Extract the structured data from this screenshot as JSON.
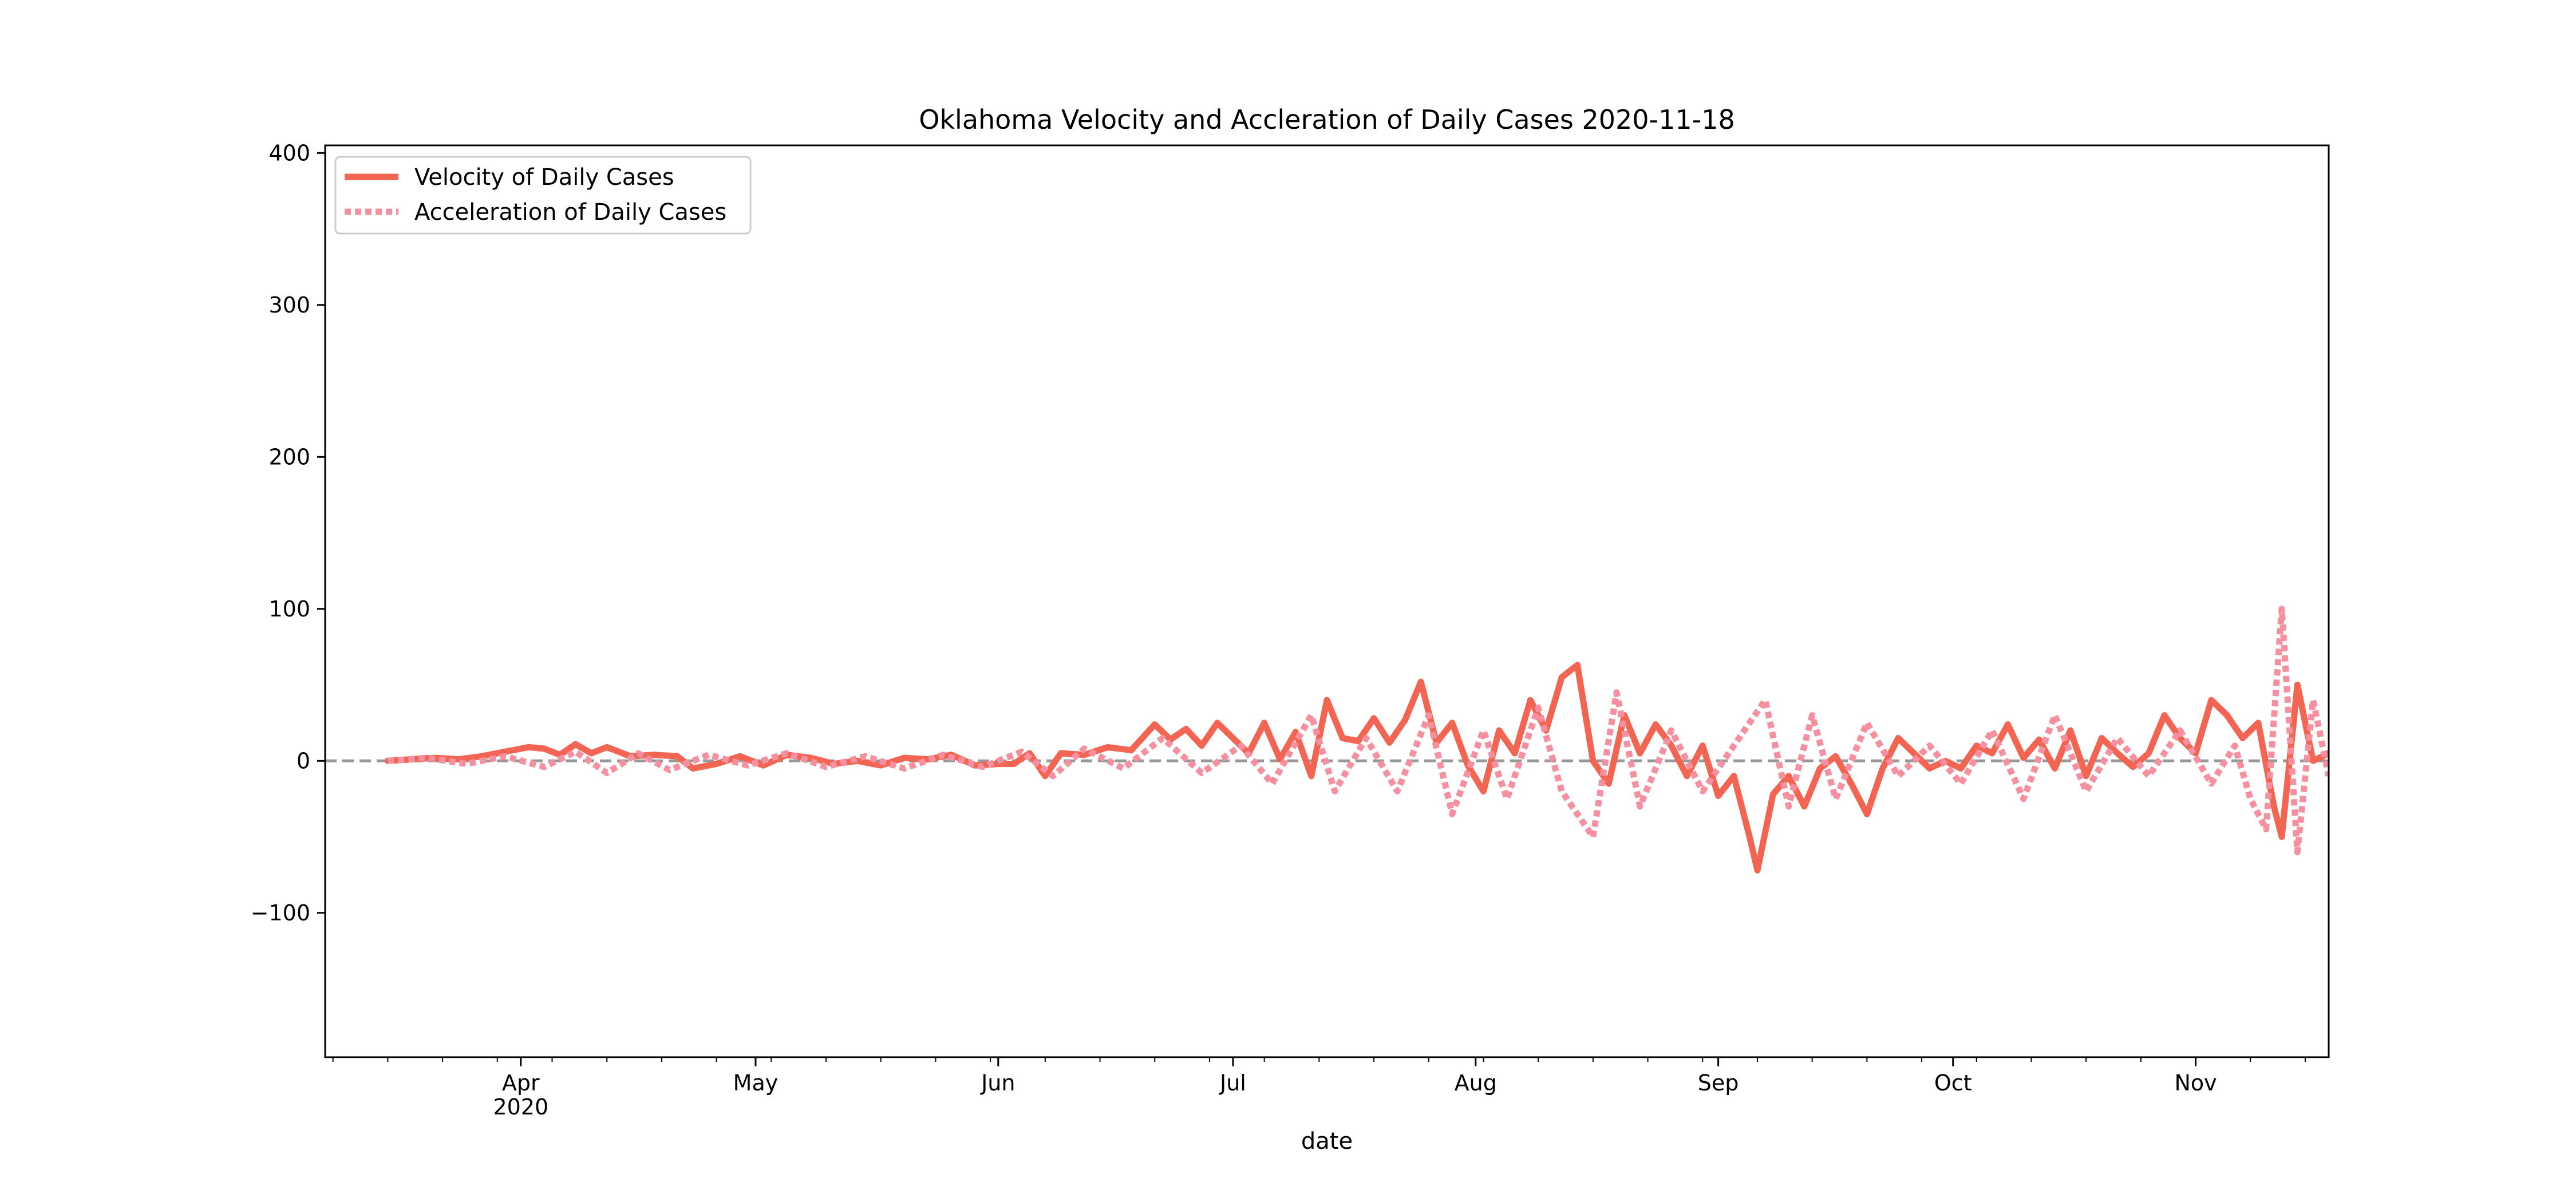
{
  "chart_data": {
    "type": "line",
    "title": "Oklahoma Velocity and Accleration of Daily Cases 2020-11-18",
    "xlabel": "date",
    "ylabel": "",
    "xlim": [
      "2020-03-07",
      "2020-11-18"
    ],
    "ylim": [
      -195,
      405
    ],
    "grid": false,
    "legend": "upper left",
    "yticks": [
      -100,
      0,
      100,
      200,
      300,
      400
    ],
    "yticklabels": [
      "−100",
      "0",
      "100",
      "200",
      "300",
      "400"
    ],
    "xticks": [
      {
        "date": "2020-04-01",
        "label": "Apr",
        "sublabel": "2020"
      },
      {
        "date": "2020-05-01",
        "label": "May",
        "sublabel": ""
      },
      {
        "date": "2020-06-01",
        "label": "Jun",
        "sublabel": ""
      },
      {
        "date": "2020-07-01",
        "label": "Jul",
        "sublabel": ""
      },
      {
        "date": "2020-08-01",
        "label": "Aug",
        "sublabel": ""
      },
      {
        "date": "2020-09-01",
        "label": "Sep",
        "sublabel": ""
      },
      {
        "date": "2020-10-01",
        "label": "Oct",
        "sublabel": ""
      },
      {
        "date": "2020-11-01",
        "label": "Nov",
        "sublabel": ""
      }
    ],
    "reference_line": {
      "y": 0,
      "color": "#999999",
      "style": "dashed"
    },
    "series": [
      {
        "name": "Velocity of Daily Cases",
        "color": "#f26552",
        "style": "solid",
        "points": [
          [
            "2020-03-15",
            0
          ],
          [
            "2020-03-18",
            1
          ],
          [
            "2020-03-21",
            2
          ],
          [
            "2020-03-24",
            1
          ],
          [
            "2020-03-27",
            3
          ],
          [
            "2020-03-30",
            6
          ],
          [
            "2020-04-02",
            9
          ],
          [
            "2020-04-04",
            8
          ],
          [
            "2020-04-06",
            4
          ],
          [
            "2020-04-08",
            11
          ],
          [
            "2020-04-10",
            5
          ],
          [
            "2020-04-12",
            9
          ],
          [
            "2020-04-15",
            3
          ],
          [
            "2020-04-18",
            4
          ],
          [
            "2020-04-21",
            3
          ],
          [
            "2020-04-23",
            -5
          ],
          [
            "2020-04-26",
            -2
          ],
          [
            "2020-04-29",
            3
          ],
          [
            "2020-05-02",
            -3
          ],
          [
            "2020-05-05",
            4
          ],
          [
            "2020-05-08",
            2
          ],
          [
            "2020-05-11",
            -2
          ],
          [
            "2020-05-14",
            0
          ],
          [
            "2020-05-17",
            -3
          ],
          [
            "2020-05-20",
            2
          ],
          [
            "2020-05-23",
            1
          ],
          [
            "2020-05-26",
            4
          ],
          [
            "2020-05-29",
            -3
          ],
          [
            "2020-06-01",
            -2
          ],
          [
            "2020-06-03",
            -2
          ],
          [
            "2020-06-05",
            5
          ],
          [
            "2020-06-07",
            -10
          ],
          [
            "2020-06-09",
            5
          ],
          [
            "2020-06-12",
            4
          ],
          [
            "2020-06-15",
            9
          ],
          [
            "2020-06-18",
            7
          ],
          [
            "2020-06-21",
            24
          ],
          [
            "2020-06-23",
            14
          ],
          [
            "2020-06-25",
            21
          ],
          [
            "2020-06-27",
            10
          ],
          [
            "2020-06-29",
            25
          ],
          [
            "2020-07-01",
            15
          ],
          [
            "2020-07-03",
            5
          ],
          [
            "2020-07-05",
            25
          ],
          [
            "2020-07-07",
            1
          ],
          [
            "2020-07-09",
            19
          ],
          [
            "2020-07-11",
            -10
          ],
          [
            "2020-07-13",
            40
          ],
          [
            "2020-07-15",
            15
          ],
          [
            "2020-07-17",
            13
          ],
          [
            "2020-07-19",
            28
          ],
          [
            "2020-07-21",
            12
          ],
          [
            "2020-07-23",
            27
          ],
          [
            "2020-07-25",
            52
          ],
          [
            "2020-07-27",
            12
          ],
          [
            "2020-07-29",
            25
          ],
          [
            "2020-07-31",
            -3
          ],
          [
            "2020-08-02",
            -20
          ],
          [
            "2020-08-04",
            20
          ],
          [
            "2020-08-06",
            5
          ],
          [
            "2020-08-08",
            40
          ],
          [
            "2020-08-10",
            20
          ],
          [
            "2020-08-12",
            55
          ],
          [
            "2020-08-14",
            63
          ],
          [
            "2020-08-16",
            0
          ],
          [
            "2020-08-18",
            -15
          ],
          [
            "2020-08-20",
            30
          ],
          [
            "2020-08-22",
            5
          ],
          [
            "2020-08-24",
            24
          ],
          [
            "2020-08-26",
            10
          ],
          [
            "2020-08-28",
            -10
          ],
          [
            "2020-08-30",
            10
          ],
          [
            "2020-09-01",
            -23
          ],
          [
            "2020-09-03",
            -10
          ],
          [
            "2020-09-05",
            -50
          ],
          [
            "2020-09-06",
            -72
          ],
          [
            "2020-09-08",
            -22
          ],
          [
            "2020-09-10",
            -10
          ],
          [
            "2020-09-12",
            -30
          ],
          [
            "2020-09-14",
            -5
          ],
          [
            "2020-09-16",
            3
          ],
          [
            "2020-09-18",
            -15
          ],
          [
            "2020-09-20",
            -35
          ],
          [
            "2020-09-22",
            -5
          ],
          [
            "2020-09-24",
            15
          ],
          [
            "2020-09-26",
            5
          ],
          [
            "2020-09-28",
            -5
          ],
          [
            "2020-09-30",
            0
          ],
          [
            "2020-10-02",
            -5
          ],
          [
            "2020-10-04",
            10
          ],
          [
            "2020-10-06",
            5
          ],
          [
            "2020-10-08",
            24
          ],
          [
            "2020-10-10",
            2
          ],
          [
            "2020-10-12",
            14
          ],
          [
            "2020-10-14",
            -5
          ],
          [
            "2020-10-16",
            20
          ],
          [
            "2020-10-18",
            -10
          ],
          [
            "2020-10-20",
            15
          ],
          [
            "2020-10-22",
            5
          ],
          [
            "2020-10-24",
            -4
          ],
          [
            "2020-10-26",
            5
          ],
          [
            "2020-10-28",
            30
          ],
          [
            "2020-10-30",
            15
          ],
          [
            "2020-11-01",
            5
          ],
          [
            "2020-11-03",
            40
          ],
          [
            "2020-11-05",
            30
          ],
          [
            "2020-11-07",
            15
          ],
          [
            "2020-11-09",
            25
          ],
          [
            "2020-11-11",
            -30
          ],
          [
            "2020-11-12",
            -50
          ],
          [
            "2020-11-14",
            50
          ],
          [
            "2020-11-16",
            0
          ],
          [
            "2020-11-18",
            5
          ]
        ]
      },
      {
        "name": "Acceleration of Daily Cases",
        "color": "#f4909f",
        "style": "dotted",
        "points": [
          [
            "2020-03-15",
            0
          ],
          [
            "2020-03-20",
            2
          ],
          [
            "2020-03-25",
            -2
          ],
          [
            "2020-03-30",
            3
          ],
          [
            "2020-04-04",
            -4
          ],
          [
            "2020-04-08",
            6
          ],
          [
            "2020-04-12",
            -8
          ],
          [
            "2020-04-16",
            5
          ],
          [
            "2020-04-20",
            -6
          ],
          [
            "2020-04-25",
            4
          ],
          [
            "2020-04-30",
            -3
          ],
          [
            "2020-05-05",
            5
          ],
          [
            "2020-05-10",
            -4
          ],
          [
            "2020-05-15",
            3
          ],
          [
            "2020-05-20",
            -5
          ],
          [
            "2020-05-25",
            4
          ],
          [
            "2020-05-30",
            -4
          ],
          [
            "2020-06-04",
            6
          ],
          [
            "2020-06-08",
            -10
          ],
          [
            "2020-06-12",
            8
          ],
          [
            "2020-06-17",
            -5
          ],
          [
            "2020-06-22",
            15
          ],
          [
            "2020-06-27",
            -8
          ],
          [
            "2020-07-02",
            10
          ],
          [
            "2020-07-06",
            -15
          ],
          [
            "2020-07-11",
            30
          ],
          [
            "2020-07-14",
            -20
          ],
          [
            "2020-07-18",
            15
          ],
          [
            "2020-07-22",
            -20
          ],
          [
            "2020-07-26",
            30
          ],
          [
            "2020-07-29",
            -35
          ],
          [
            "2020-08-02",
            20
          ],
          [
            "2020-08-05",
            -25
          ],
          [
            "2020-08-09",
            35
          ],
          [
            "2020-08-12",
            -20
          ],
          [
            "2020-08-16",
            -50
          ],
          [
            "2020-08-19",
            45
          ],
          [
            "2020-08-22",
            -30
          ],
          [
            "2020-08-26",
            20
          ],
          [
            "2020-08-30",
            -20
          ],
          [
            "2020-09-03",
            10
          ],
          [
            "2020-09-07",
            40
          ],
          [
            "2020-09-10",
            -30
          ],
          [
            "2020-09-13",
            30
          ],
          [
            "2020-09-16",
            -25
          ],
          [
            "2020-09-20",
            25
          ],
          [
            "2020-09-24",
            -10
          ],
          [
            "2020-09-28",
            10
          ],
          [
            "2020-10-02",
            -15
          ],
          [
            "2020-10-06",
            20
          ],
          [
            "2020-10-10",
            -25
          ],
          [
            "2020-10-14",
            30
          ],
          [
            "2020-10-18",
            -20
          ],
          [
            "2020-10-22",
            15
          ],
          [
            "2020-10-26",
            -10
          ],
          [
            "2020-10-30",
            20
          ],
          [
            "2020-11-03",
            -15
          ],
          [
            "2020-11-06",
            10
          ],
          [
            "2020-11-08",
            -25
          ],
          [
            "2020-11-10",
            -45
          ],
          [
            "2020-11-12",
            100
          ],
          [
            "2020-11-14",
            -60
          ],
          [
            "2020-11-16",
            40
          ],
          [
            "2020-11-18",
            -10
          ]
        ]
      }
    ]
  }
}
